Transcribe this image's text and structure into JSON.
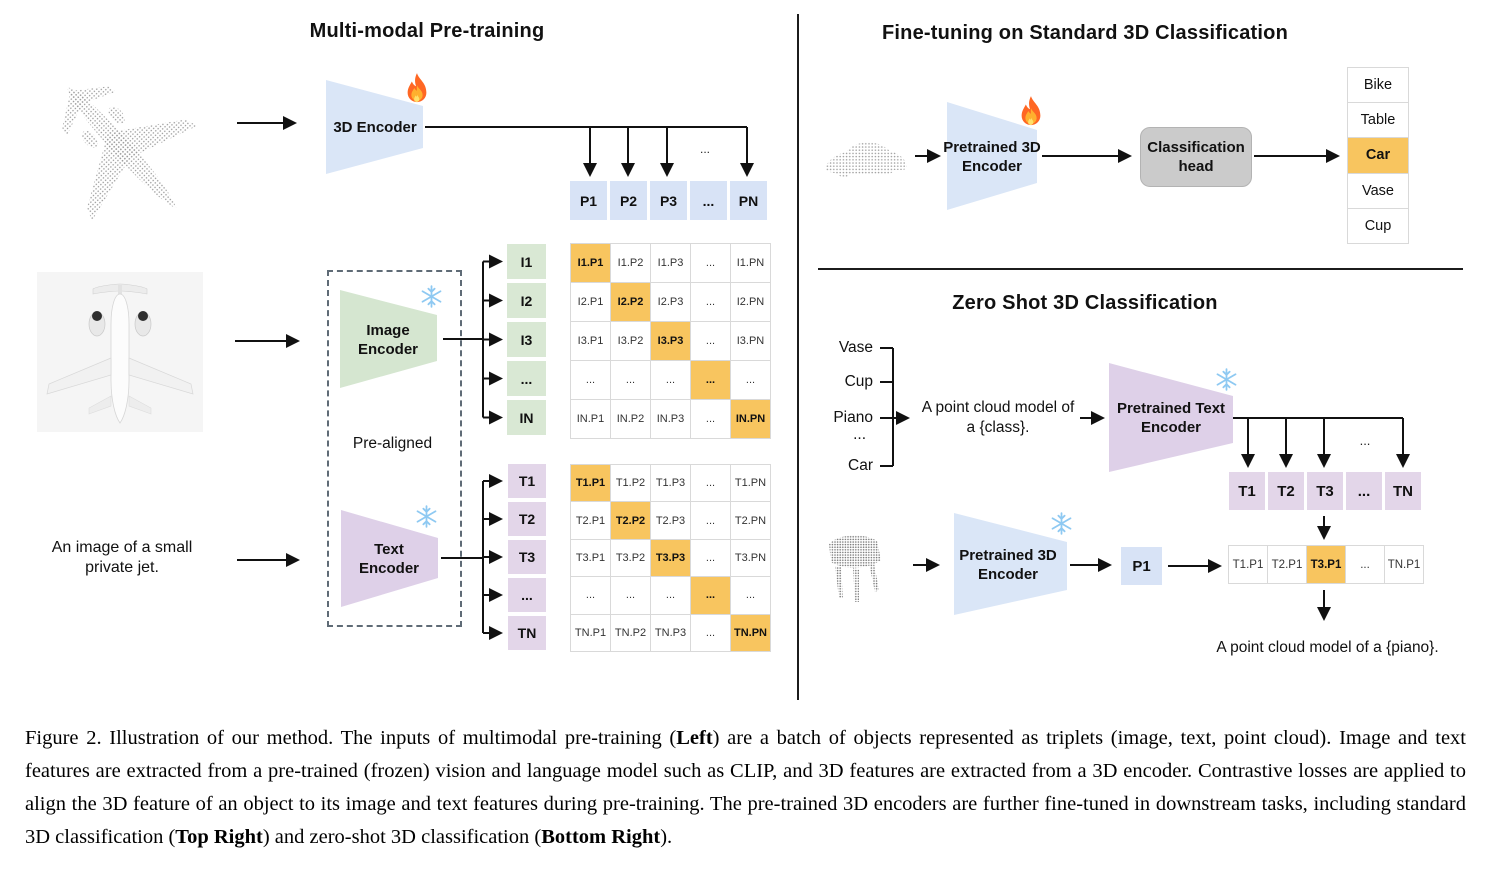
{
  "colors": {
    "orange": "#F8C55F",
    "blue-cell": "#d8e3f6",
    "blue-enc": "#dae6f7",
    "green": "#d9e8d4",
    "green-enc": "#d5e6d0",
    "purple-enc": "#ded0e8",
    "purple-cell": "#e3d6e9",
    "gray-head": "#cbcbcb",
    "grid-line": "#d9d9d9"
  },
  "left_panel": {
    "title": "Multi-modal Pre-training",
    "encoder_3d_label": "3D Encoder",
    "image_encoder_label": "Image\nEncoder",
    "text_encoder_label": "Text\nEncoder",
    "pre_aligned_label": "Pre-aligned",
    "image_caption": "An image of a small\nprivate jet.",
    "ellipsis": "...",
    "p_row": [
      "P1",
      "P2",
      "P3",
      "...",
      "PN"
    ],
    "i_labels": [
      "I1",
      "I2",
      "I3",
      "...",
      "IN"
    ],
    "t_labels": [
      "T1",
      "T2",
      "T3",
      "...",
      "TN"
    ],
    "i_matrix": [
      {
        "label": "I1.P1",
        "highlight": true
      },
      {
        "label": "I1.P2"
      },
      {
        "label": "I1.P3"
      },
      {
        "label": "..."
      },
      {
        "label": "I1.PN"
      },
      {
        "label": "I2.P1"
      },
      {
        "label": "I2.P2",
        "highlight": true
      },
      {
        "label": "I2.P3"
      },
      {
        "label": "..."
      },
      {
        "label": "I2.PN"
      },
      {
        "label": "I3.P1"
      },
      {
        "label": "I3.P2"
      },
      {
        "label": "I3.P3",
        "highlight": true
      },
      {
        "label": "..."
      },
      {
        "label": "I3.PN"
      },
      {
        "label": "..."
      },
      {
        "label": "..."
      },
      {
        "label": "..."
      },
      {
        "label": "...",
        "highlight": true
      },
      {
        "label": "..."
      },
      {
        "label": "IN.P1"
      },
      {
        "label": "IN.P2"
      },
      {
        "label": "IN.P3"
      },
      {
        "label": "..."
      },
      {
        "label": "IN.PN",
        "highlight": true
      }
    ],
    "t_matrix": [
      {
        "label": "T1.P1",
        "highlight": true
      },
      {
        "label": "T1.P2"
      },
      {
        "label": "T1.P3"
      },
      {
        "label": "..."
      },
      {
        "label": "T1.PN"
      },
      {
        "label": "T2.P1"
      },
      {
        "label": "T2.P2",
        "highlight": true
      },
      {
        "label": "T2.P3"
      },
      {
        "label": "..."
      },
      {
        "label": "T2.PN"
      },
      {
        "label": "T3.P1"
      },
      {
        "label": "T3.P2"
      },
      {
        "label": "T3.P3",
        "highlight": true
      },
      {
        "label": "..."
      },
      {
        "label": "T3.PN"
      },
      {
        "label": "..."
      },
      {
        "label": "..."
      },
      {
        "label": "..."
      },
      {
        "label": "...",
        "highlight": true
      },
      {
        "label": "..."
      },
      {
        "label": "TN.P1"
      },
      {
        "label": "TN.P2"
      },
      {
        "label": "TN.P3"
      },
      {
        "label": "..."
      },
      {
        "label": "TN.PN",
        "highlight": true
      }
    ]
  },
  "top_right_panel": {
    "title": "Fine-tuning on Standard 3D Classification",
    "encoder_label": "Pretrained 3D\nEncoder",
    "head_label": "Classification\nhead",
    "highlighted_class": "Car",
    "classes": [
      {
        "label": "Bike"
      },
      {
        "label": "Table"
      },
      {
        "label": "Car",
        "highlight": true
      },
      {
        "label": "Vase"
      },
      {
        "label": "Cup"
      }
    ]
  },
  "bottom_right_panel": {
    "title": "Zero Shot 3D Classification",
    "class_prompts": [
      "Vase",
      "Cup",
      "Piano",
      "...",
      "Car"
    ],
    "prompt_text": "A point cloud model of\na {class}.",
    "text_encoder_label": "Pretrained Text\nEncoder",
    "encoder_label": "Pretrained 3D\nEncoder",
    "p1_label": "P1",
    "ellipsis": "...",
    "t_row": [
      "T1",
      "T2",
      "T3",
      "...",
      "TN"
    ],
    "highlighted_result": "T3.P1",
    "result_row": [
      {
        "label": "T1.P1"
      },
      {
        "label": "T2.P1"
      },
      {
        "label": "T3.P1",
        "highlight": true
      },
      {
        "label": "..."
      },
      {
        "label": "TN.P1"
      }
    ],
    "result_text": "A point cloud model of a {piano}."
  },
  "caption": {
    "segments": [
      {
        "text": "Figure 2. Illustration of our method.  The inputs of multimodal pre-training ("
      },
      {
        "text": "Left",
        "bold": true
      },
      {
        "text": ") are a batch of objects represented as triplets (image, text, point cloud).  Image and text features are extracted from a pre-trained (frozen) vision and language model such as CLIP, and 3D features are extracted from a 3D encoder.  Contrastive losses are applied to align the 3D feature of an object to its image and text features during pre-training.  The pre-trained 3D encoders are further fine-tuned in downstream tasks, including standard 3D classification ("
      },
      {
        "text": "Top Right",
        "bold": true
      },
      {
        "text": ") and zero-shot 3D classification ("
      },
      {
        "text": "Bottom Right",
        "bold": true
      },
      {
        "text": ")."
      }
    ]
  }
}
